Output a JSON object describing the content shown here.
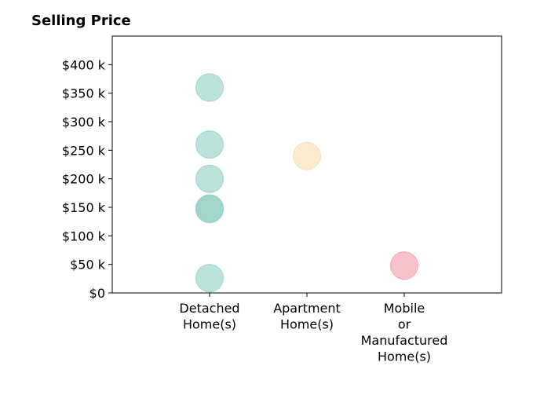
{
  "chart_data": {
    "type": "scatter",
    "title": "Selling Price",
    "xlabel": "",
    "ylabel": "",
    "categories": [
      [
        "Detached",
        "Home(s)"
      ],
      [
        "Apartment",
        "Home(s)"
      ],
      [
        "Mobile",
        "or",
        "Manufactured",
        "Home(s)"
      ]
    ],
    "y_ticks": [
      {
        "value": 0,
        "label": "$0"
      },
      {
        "value": 50000,
        "label": "$50 k"
      },
      {
        "value": 100000,
        "label": "$100 k"
      },
      {
        "value": 150000,
        "label": "$150 k"
      },
      {
        "value": 200000,
        "label": "$200 k"
      },
      {
        "value": 250000,
        "label": "$250 k"
      },
      {
        "value": 300000,
        "label": "$300 k"
      },
      {
        "value": 350000,
        "label": "$350 k"
      },
      {
        "value": 400000,
        "label": "$400 k"
      }
    ],
    "ylim": [
      0,
      450000
    ],
    "grid": false,
    "points": [
      {
        "category": 0,
        "y": 360000,
        "color": "#8ecfc5"
      },
      {
        "category": 0,
        "y": 260000,
        "color": "#8ecfc5"
      },
      {
        "category": 0,
        "y": 200000,
        "color": "#8ecfc5"
      },
      {
        "category": 0,
        "y": 148000,
        "color": "#8ecfc5"
      },
      {
        "category": 0,
        "y": 147000,
        "color": "#8ecfc5"
      },
      {
        "category": 0,
        "y": 26000,
        "color": "#8ecfc5"
      },
      {
        "category": 1,
        "y": 240000,
        "color": "#f6dfaa"
      },
      {
        "category": 2,
        "y": 48000,
        "color": "#f29aa3"
      }
    ]
  }
}
